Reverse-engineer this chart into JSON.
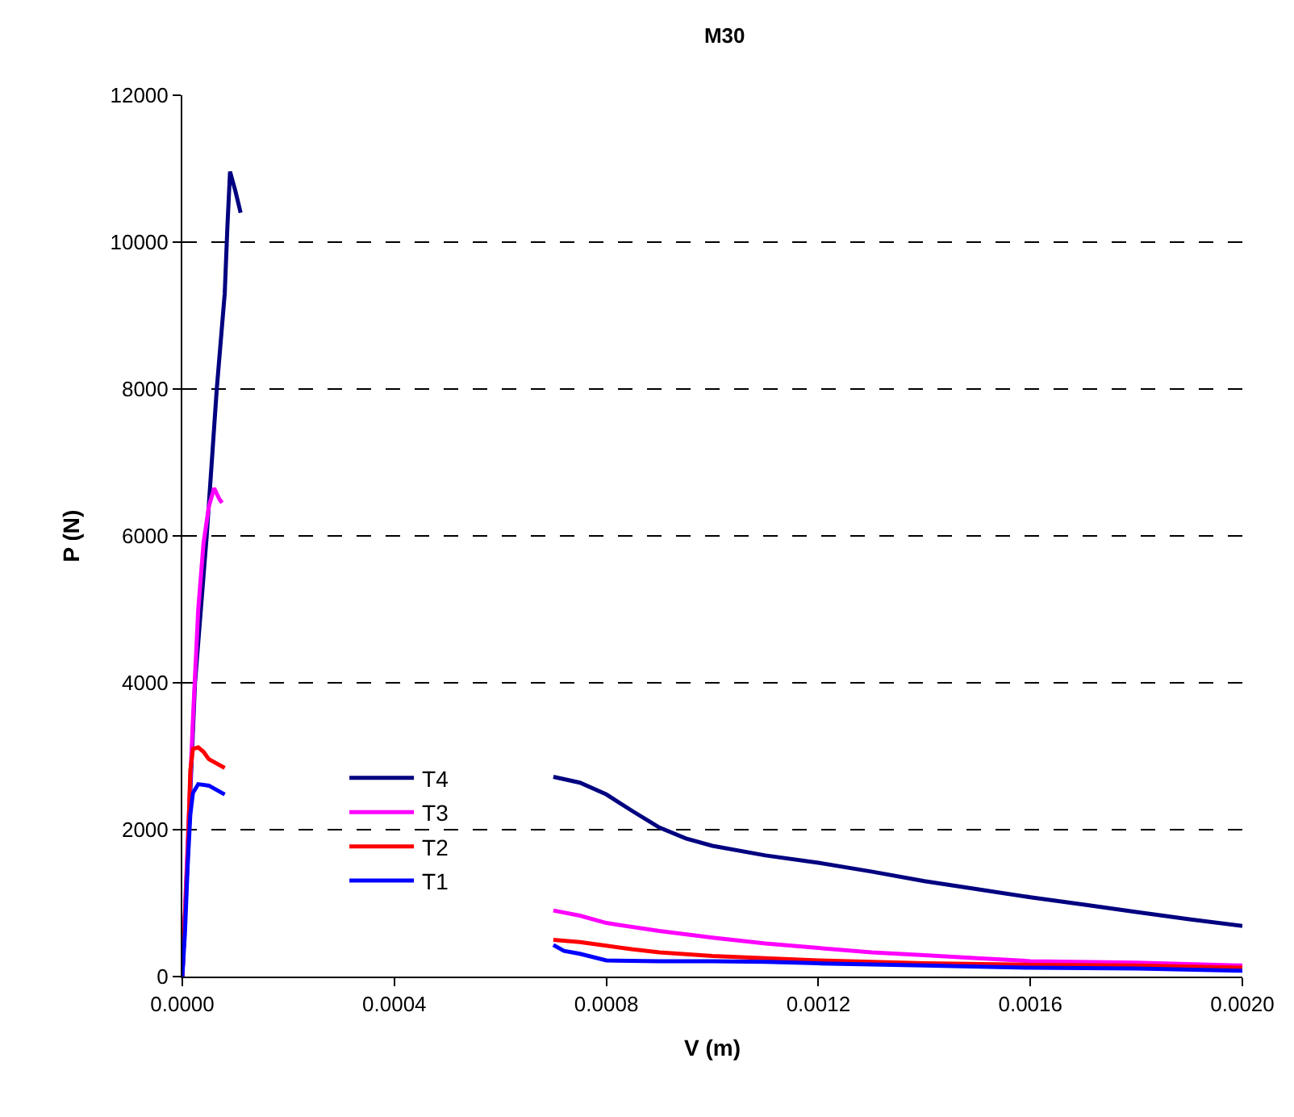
{
  "chart_data": {
    "type": "line",
    "title": "M30",
    "xlabel": "V (m)",
    "ylabel": "P (N)",
    "xlim": [
      0,
      0.002
    ],
    "xticks": [
      {
        "value": 0,
        "label": "0.0000"
      },
      {
        "value": 0.0004,
        "label": "0.0004"
      },
      {
        "value": 0.0008,
        "label": "0.0008"
      },
      {
        "value": 0.0012,
        "label": "0.0012"
      },
      {
        "value": 0.0016,
        "label": "0.0016"
      },
      {
        "value": 0.002,
        "label": "0.0020"
      }
    ],
    "ylim": [
      0,
      12000
    ],
    "yticks": [
      0,
      2000,
      4000,
      6000,
      8000,
      10000,
      12000
    ],
    "grid": "y",
    "legend": "bottom left",
    "marker": "none",
    "line_style": "solid",
    "series": [
      {
        "name": "T4",
        "color": "#000080",
        "x": [
          0,
          1.2e-05,
          2.4e-05,
          4.6e-05,
          6.5e-05,
          8e-05,
          8.5e-05,
          9e-05,
          0.0001,
          0.00011,
          null,
          0.0007,
          0.00075,
          0.0008,
          0.00085,
          0.0009,
          0.00095,
          0.001,
          0.0011,
          0.0012,
          0.0013,
          0.0014,
          0.0015,
          0.0016,
          0.0017,
          0.0018,
          0.0019,
          0.002
        ],
        "values": [
          0,
          2000,
          4000,
          6000,
          8000,
          9300,
          10200,
          10960,
          10700,
          10400,
          null,
          2720,
          2640,
          2480,
          2250,
          2030,
          1880,
          1780,
          1650,
          1550,
          1430,
          1300,
          1190,
          1080,
          980,
          880,
          780,
          690
        ]
      },
      {
        "name": "T3",
        "color": "#ff00ff",
        "x": [
          0,
          1e-05,
          2e-05,
          3e-05,
          4e-05,
          5e-05,
          6e-05,
          7e-05,
          7.5e-05,
          null,
          0.0007,
          0.00075,
          0.0008,
          0.0009,
          0.001,
          0.0011,
          0.0012,
          0.0013,
          0.0014,
          0.0015,
          0.0016,
          0.0018,
          0.002
        ],
        "values": [
          0,
          1800,
          3500,
          5000,
          5900,
          6400,
          6650,
          6500,
          6450,
          null,
          900,
          830,
          730,
          620,
          530,
          450,
          390,
          330,
          290,
          250,
          210,
          190,
          150
        ]
      },
      {
        "name": "T2",
        "color": "#ff0000",
        "x": [
          0,
          1e-05,
          1.5e-05,
          2e-05,
          3e-05,
          4e-05,
          5e-05,
          8e-05,
          null,
          0.0007,
          0.00075,
          0.0008,
          0.00085,
          0.0009,
          0.001,
          0.0011,
          0.0012,
          0.0014,
          0.0016,
          0.0018,
          0.002
        ],
        "values": [
          0,
          1600,
          2800,
          3100,
          3120,
          3060,
          2960,
          2840,
          null,
          500,
          470,
          420,
          370,
          330,
          280,
          250,
          220,
          180,
          160,
          150,
          120
        ]
      },
      {
        "name": "T1",
        "color": "#0000ff",
        "x": [
          0,
          5e-06,
          1e-05,
          1.5e-05,
          2e-05,
          3e-05,
          5e-05,
          8e-05,
          null,
          0.0007,
          0.00072,
          0.00075,
          0.0008,
          0.0009,
          0.001,
          0.0011,
          0.0012,
          0.0014,
          0.0016,
          0.0018,
          0.002
        ],
        "values": [
          0,
          600,
          1500,
          2200,
          2500,
          2620,
          2600,
          2480,
          null,
          430,
          350,
          310,
          220,
          210,
          210,
          200,
          180,
          150,
          120,
          110,
          80
        ]
      }
    ]
  }
}
